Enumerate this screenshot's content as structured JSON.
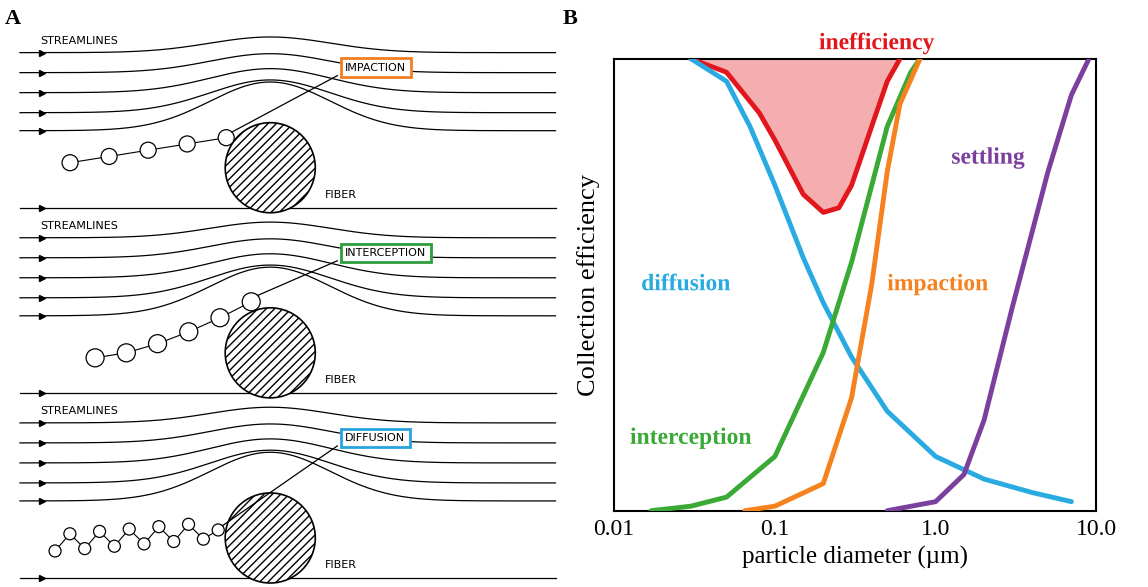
{
  "panel_labels": [
    "A",
    "B"
  ],
  "diagram": {
    "panels": [
      {
        "streamlines_label": "STREAMLINES",
        "mechanism": "IMPACTION",
        "color": "#f07f23",
        "fiber_label": "FIBER"
      },
      {
        "streamlines_label": "STREAMLINES",
        "mechanism": "INTERCEPTION",
        "color": "#2e9e3e",
        "fiber_label": "FIBER"
      },
      {
        "streamlines_label": "STREAMLINES",
        "mechanism": "DIFFUSION",
        "color": "#29a3dd",
        "fiber_label": "FIBER"
      }
    ]
  },
  "chart_data": {
    "type": "line",
    "x_label": "particle diameter (µm)",
    "y_label": "Collection efficiency",
    "log": "x",
    "tick_labels": "x",
    "xlim": [
      0.01,
      10
    ],
    "xticks": [
      0.01,
      0.1,
      {
        "value": 1,
        "label": "1.0"
      },
      {
        "value": 10,
        "label": "10.0"
      }
    ],
    "ylim": [
      0,
      1
    ],
    "series": [
      {
        "name": "inefficiency",
        "color": "#e2171d",
        "type": "area",
        "x": [
          0.03,
          0.05,
          0.08,
          0.1,
          0.15,
          0.2,
          0.25,
          0.3,
          0.4,
          0.5,
          0.6
        ],
        "values": [
          1.0,
          0.97,
          0.88,
          0.82,
          0.7,
          0.66,
          0.67,
          0.72,
          0.85,
          0.95,
          1.0
        ]
      },
      {
        "name": "diffusion",
        "color": "#29abe2",
        "x": [
          0.03,
          0.05,
          0.07,
          0.1,
          0.15,
          0.2,
          0.3,
          0.5,
          1.0,
          2.0,
          4.0,
          7.0
        ],
        "values": [
          1.0,
          0.95,
          0.85,
          0.72,
          0.56,
          0.46,
          0.34,
          0.22,
          0.12,
          0.07,
          0.04,
          0.02
        ]
      },
      {
        "name": "interception",
        "color": "#3aa935",
        "x": [
          0.017,
          0.03,
          0.05,
          0.1,
          0.2,
          0.3,
          0.5,
          0.7,
          0.8
        ],
        "values": [
          0.0,
          0.01,
          0.03,
          0.12,
          0.35,
          0.55,
          0.85,
          0.97,
          1.0
        ]
      },
      {
        "name": "impaction",
        "color": "#f5821f",
        "x": [
          0.065,
          0.1,
          0.2,
          0.3,
          0.4,
          0.5,
          0.6,
          0.8
        ],
        "values": [
          0.0,
          0.01,
          0.06,
          0.25,
          0.5,
          0.75,
          0.9,
          1.0
        ]
      },
      {
        "name": "settling",
        "color": "#7b3f9e",
        "x": [
          0.5,
          1.0,
          1.5,
          2.0,
          3.0,
          5.0,
          7.0,
          9.0
        ],
        "values": [
          0.0,
          0.02,
          0.08,
          0.2,
          0.45,
          0.75,
          0.92,
          1.0
        ]
      }
    ]
  }
}
